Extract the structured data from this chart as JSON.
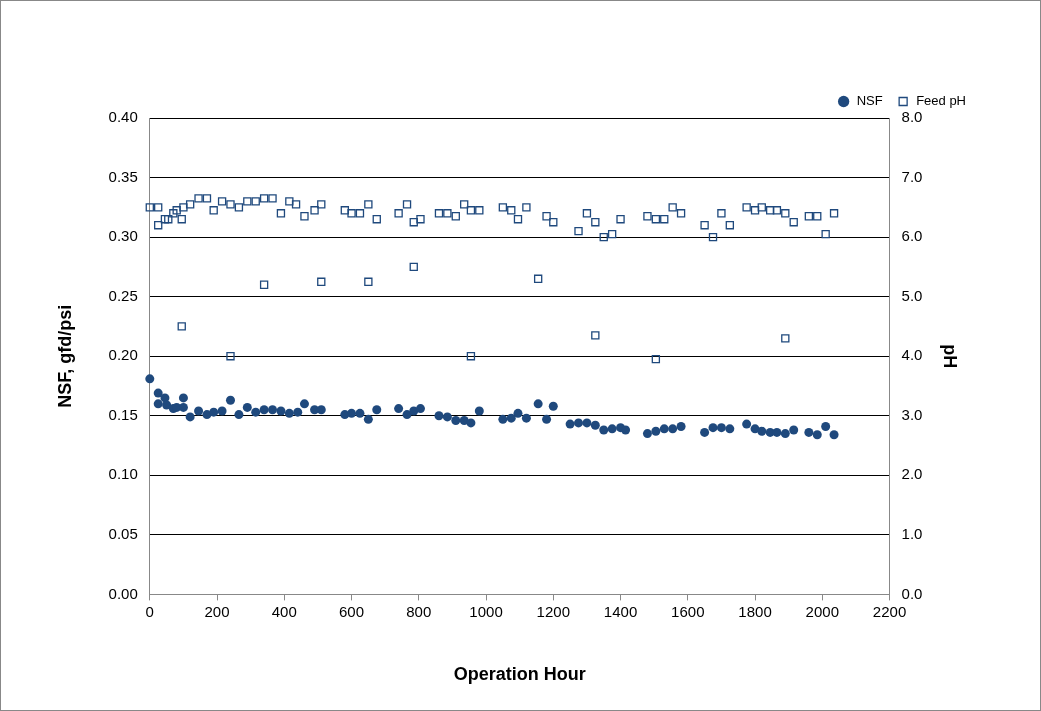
{
  "chart_data": {
    "type": "scatter",
    "xlabel": "Operation Hour",
    "ylabel": "NSF, gfd/psi",
    "y2label": "pH",
    "xlim": [
      0,
      2200
    ],
    "xticks": [
      0,
      200,
      400,
      600,
      800,
      1000,
      1200,
      1400,
      1600,
      1800,
      2000,
      2200
    ],
    "ylim": [
      0,
      0.4
    ],
    "yticks": [
      {
        "value": 0,
        "label": "0.00"
      },
      {
        "value": 0.05,
        "label": "0.05"
      },
      {
        "value": 0.1,
        "label": "0.10"
      },
      {
        "value": 0.15,
        "label": "0.15"
      },
      {
        "value": 0.2,
        "label": "0.20"
      },
      {
        "value": 0.25,
        "label": "0.25"
      },
      {
        "value": 0.3,
        "label": "0.30"
      },
      {
        "value": 0.35,
        "label": "0.35"
      },
      {
        "value": 0.4,
        "label": "0.40"
      }
    ],
    "y2lim": [
      0,
      8
    ],
    "y2ticks": [
      {
        "value": 0,
        "label": "0.0"
      },
      {
        "value": 1,
        "label": "1.0"
      },
      {
        "value": 2,
        "label": "2.0"
      },
      {
        "value": 3,
        "label": "3.0"
      },
      {
        "value": 4,
        "label": "4.0"
      },
      {
        "value": 5,
        "label": "5.0"
      },
      {
        "value": 6,
        "label": "6.0"
      },
      {
        "value": 7,
        "label": "7.0"
      },
      {
        "value": 8,
        "label": "8.0"
      }
    ],
    "grid": "y",
    "legend": "top right",
    "series": [
      {
        "name": "NSF",
        "color": "#1f497d",
        "marker": "circle",
        "x": [
          0,
          25,
          25,
          45,
          50,
          70,
          80,
          100,
          100,
          120,
          145,
          170,
          190,
          215,
          240,
          265,
          290,
          315,
          340,
          365,
          390,
          415,
          440,
          460,
          490,
          510,
          580,
          600,
          625,
          650,
          675,
          740,
          765,
          785,
          805,
          860,
          885,
          910,
          935,
          955,
          980,
          1050,
          1075,
          1095,
          1120,
          1155,
          1180,
          1200,
          1250,
          1275,
          1300,
          1325,
          1350,
          1375,
          1400,
          1415,
          1480,
          1505,
          1530,
          1555,
          1580,
          1650,
          1675,
          1700,
          1725,
          1775,
          1800,
          1820,
          1845,
          1865,
          1890,
          1915,
          1960,
          1985,
          2010,
          2035
        ],
        "values": [
          0.181,
          0.169,
          0.16,
          0.165,
          0.159,
          0.156,
          0.157,
          0.165,
          0.157,
          0.149,
          0.154,
          0.151,
          0.153,
          0.154,
          0.163,
          0.151,
          0.157,
          0.153,
          0.155,
          0.155,
          0.154,
          0.152,
          0.153,
          0.16,
          0.155,
          0.155,
          0.151,
          0.152,
          0.152,
          0.147,
          0.155,
          0.156,
          0.151,
          0.154,
          0.156,
          0.15,
          0.149,
          0.146,
          0.146,
          0.144,
          0.154,
          0.147,
          0.148,
          0.152,
          0.148,
          0.16,
          0.147,
          0.158,
          0.143,
          0.144,
          0.144,
          0.142,
          0.138,
          0.139,
          0.14,
          0.138,
          0.135,
          0.137,
          0.139,
          0.139,
          0.141,
          0.136,
          0.14,
          0.14,
          0.139,
          0.143,
          0.139,
          0.137,
          0.136,
          0.136,
          0.135,
          0.138,
          0.136,
          0.134,
          0.141,
          0.134
        ]
      },
      {
        "name": "Feed pH",
        "color": "#1f497d",
        "marker": "square",
        "axis": "y2",
        "x": [
          0,
          25,
          25,
          45,
          55,
          70,
          80,
          95,
          100,
          95,
          120,
          145,
          170,
          190,
          215,
          240,
          240,
          265,
          290,
          315,
          340,
          340,
          365,
          390,
          415,
          435,
          460,
          490,
          510,
          510,
          580,
          600,
          625,
          650,
          650,
          675,
          740,
          765,
          785,
          785,
          805,
          860,
          885,
          910,
          935,
          955,
          955,
          980,
          1050,
          1075,
          1095,
          1120,
          1155,
          1180,
          1200,
          1275,
          1300,
          1325,
          1325,
          1350,
          1375,
          1400,
          1480,
          1505,
          1530,
          1555,
          1580,
          1505,
          1650,
          1675,
          1700,
          1725,
          1775,
          1800,
          1820,
          1845,
          1865,
          1890,
          1890,
          1915,
          1960,
          1985,
          2010,
          2035
        ],
        "values": [
          6.5,
          6.2,
          6.5,
          6.3,
          6.3,
          6.4,
          6.45,
          6.3,
          6.5,
          4.5,
          6.55,
          6.65,
          6.65,
          6.45,
          6.6,
          6.55,
          4.0,
          6.5,
          6.6,
          6.6,
          6.65,
          5.2,
          6.65,
          6.4,
          6.6,
          6.55,
          6.35,
          6.45,
          6.55,
          5.25,
          6.45,
          6.4,
          6.4,
          6.55,
          5.25,
          6.3,
          6.4,
          6.55,
          6.25,
          5.5,
          6.3,
          6.4,
          6.4,
          6.35,
          6.55,
          6.45,
          4.0,
          6.45,
          6.5,
          6.45,
          6.3,
          6.5,
          5.3,
          6.35,
          6.25,
          6.1,
          6.4,
          6.25,
          4.35,
          6.0,
          6.05,
          6.3,
          6.35,
          6.3,
          6.3,
          6.5,
          6.4,
          3.95,
          6.2,
          6.0,
          6.4,
          6.2,
          6.5,
          6.45,
          6.5,
          6.45,
          6.45,
          6.4,
          4.3,
          6.25,
          6.35,
          6.35,
          6.05,
          6.4
        ]
      }
    ]
  }
}
